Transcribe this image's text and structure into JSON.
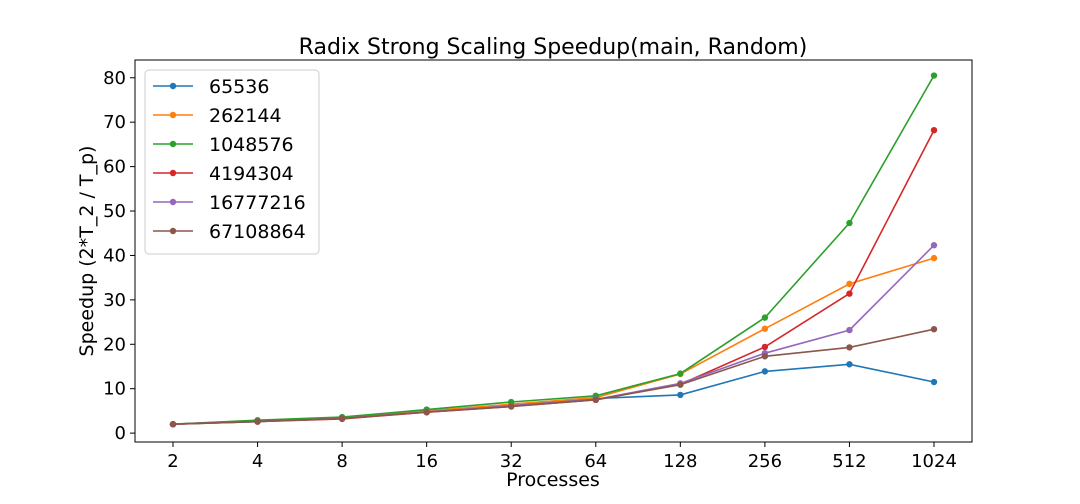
{
  "chart_data": {
    "type": "line",
    "title": "Radix Strong Scaling Speedup(main, Random)",
    "xlabel": "Processes",
    "ylabel": "Speedup (2*T_2 / T_p)",
    "categories": [
      "2",
      "4",
      "8",
      "16",
      "32",
      "64",
      "128",
      "256",
      "512",
      "1024"
    ],
    "ylim": [
      -2,
      84
    ],
    "yticks": [
      "0",
      "10",
      "20",
      "30",
      "40",
      "50",
      "60",
      "70",
      "80"
    ],
    "grid": false,
    "legend_position": "top-left",
    "series": [
      {
        "name": "65536",
        "color": "#1f77b4",
        "values": [
          2.0,
          2.8,
          3.5,
          5.0,
          6.3,
          7.8,
          8.6,
          13.9,
          15.5,
          11.5
        ]
      },
      {
        "name": "262144",
        "color": "#ff7f0e",
        "values": [
          2.0,
          2.7,
          3.3,
          5.0,
          6.5,
          8.0,
          13.3,
          23.5,
          33.6,
          39.4
        ]
      },
      {
        "name": "1048576",
        "color": "#2ca02c",
        "values": [
          2.0,
          2.9,
          3.6,
          5.3,
          7.0,
          8.4,
          13.4,
          26.0,
          47.3,
          80.5
        ]
      },
      {
        "name": "4194304",
        "color": "#d62728",
        "values": [
          2.0,
          2.6,
          3.2,
          4.7,
          6.0,
          7.5,
          11.0,
          19.4,
          31.4,
          68.2
        ]
      },
      {
        "name": "16777216",
        "color": "#9467bd",
        "values": [
          2.0,
          2.6,
          3.3,
          4.8,
          6.1,
          7.6,
          11.2,
          18.0,
          23.2,
          42.3
        ]
      },
      {
        "name": "67108864",
        "color": "#8c564b",
        "values": [
          2.0,
          2.6,
          3.3,
          4.7,
          6.0,
          7.5,
          10.9,
          17.3,
          19.3,
          23.4
        ]
      }
    ]
  }
}
